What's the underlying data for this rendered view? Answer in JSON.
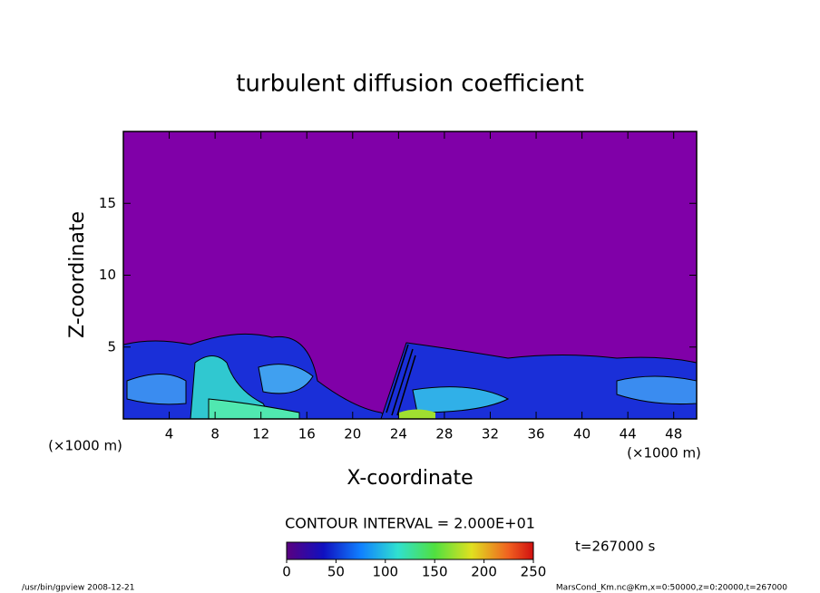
{
  "chart_data": {
    "type": "contour",
    "title": "turbulent diffusion coefficient",
    "x_label": "X-coordinate",
    "y_label": "Z-coordinate",
    "x_unit": "(×1000 m)",
    "xlim": [
      0,
      50
    ],
    "xticks": [
      4,
      8,
      12,
      16,
      20,
      24,
      28,
      32,
      36,
      40,
      44,
      48
    ],
    "ylim": [
      0,
      20
    ],
    "yticks": [
      5,
      10,
      15
    ],
    "contour_interval": "CONTOUR INTERVAL = 2.000E+01",
    "time_label": "t=267000 s",
    "colorbar": {
      "lim": [
        0,
        250
      ],
      "ticks": [
        0,
        50,
        100,
        150,
        200,
        250
      ]
    },
    "footer_left": "/usr/bin/gpview   2008-12-21",
    "footer_right": "MarsCond_Km.nc@Km,x=0:50000,z=0:20000,t=267000"
  }
}
